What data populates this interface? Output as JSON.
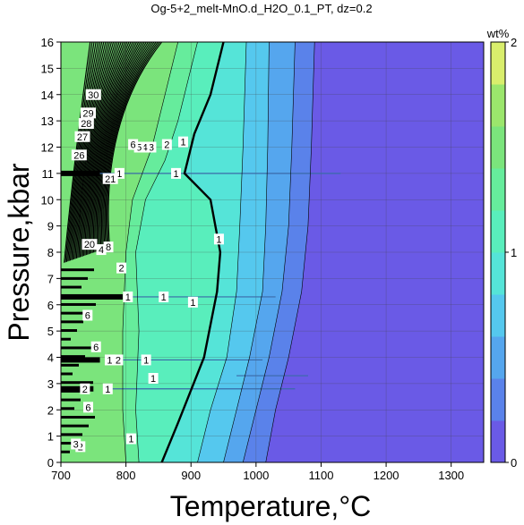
{
  "chart_data": {
    "type": "heatmap",
    "title": "Og-5+2_melt-MnO.d_H2O_0.1_PT, dz=0.2",
    "xlabel": "Temperature,°C",
    "ylabel": "Pressure,kbar",
    "xlim": [
      700,
      1350
    ],
    "ylim": [
      0,
      16
    ],
    "x_ticks": [
      700,
      800,
      900,
      1000,
      1100,
      1200,
      1300
    ],
    "y_ticks": [
      0,
      1,
      2,
      3,
      4,
      5,
      6,
      7,
      8,
      9,
      10,
      11,
      12,
      13,
      14,
      15,
      16
    ],
    "grid": true,
    "colorbar": {
      "label": "wt%",
      "min": 0,
      "max": 2,
      "step": 0.2,
      "ticks": [
        0,
        1,
        2
      ],
      "colors": [
        "#6a5ae6",
        "#5a82ea",
        "#55a6ee",
        "#55c8ee",
        "#55e4d8",
        "#59eebc",
        "#66ec9c",
        "#7be47c",
        "#9be66c",
        "#d9ee6c",
        "#f4b496",
        "#f2a0c0",
        "#f0aad8",
        "#f2b8e2",
        "#f4c6ea",
        "#f6d2ee"
      ]
    },
    "boundaries": [
      {
        "value": 0.2,
        "points": [
          [
            1015,
            0
          ],
          [
            1030,
            2
          ],
          [
            1050,
            4
          ],
          [
            1070,
            6.5
          ],
          [
            1080,
            9
          ],
          [
            1085,
            12
          ],
          [
            1090,
            16
          ]
        ]
      },
      {
        "value": 0.4,
        "points": [
          [
            980,
            0
          ],
          [
            1000,
            2
          ],
          [
            1020,
            4
          ],
          [
            1040,
            6.5
          ],
          [
            1050,
            9
          ],
          [
            1055,
            12
          ],
          [
            1060,
            16
          ]
        ]
      },
      {
        "value": 0.6,
        "points": [
          [
            950,
            0
          ],
          [
            970,
            2
          ],
          [
            990,
            4
          ],
          [
            1010,
            6.5
          ],
          [
            1015,
            9
          ],
          [
            1018,
            12
          ],
          [
            1020,
            16
          ]
        ]
      },
      {
        "value": 0.8,
        "points": [
          [
            910,
            0
          ],
          [
            930,
            2
          ],
          [
            955,
            4
          ],
          [
            970,
            6.5
          ],
          [
            975,
            9
          ],
          [
            980,
            12
          ],
          [
            985,
            16
          ]
        ]
      },
      {
        "value": 1.0,
        "points": [
          [
            855,
            0
          ],
          [
            880,
            1.5
          ],
          [
            920,
            4
          ],
          [
            940,
            6.5
          ],
          [
            945,
            8
          ],
          [
            930,
            10
          ],
          [
            890,
            11
          ],
          [
            905,
            12.5
          ],
          [
            930,
            14
          ],
          [
            950,
            16
          ]
        ]
      },
      {
        "value": 1.2,
        "points": [
          [
            820,
            0
          ],
          [
            815,
            2
          ],
          [
            820,
            5
          ],
          [
            815,
            8
          ],
          [
            830,
            10
          ],
          [
            860,
            11.5
          ],
          [
            880,
            13
          ],
          [
            910,
            16
          ]
        ]
      },
      {
        "value": 1.4,
        "points": [
          [
            800,
            0
          ],
          [
            795,
            2
          ],
          [
            795,
            5
          ],
          [
            800,
            8
          ],
          [
            810,
            10
          ],
          [
            840,
            12
          ],
          [
            860,
            14
          ],
          [
            880,
            16
          ]
        ]
      }
    ],
    "contour_labels": [
      {
        "text": "1",
        "x": 888,
        "y": 12.2
      },
      {
        "text": "1",
        "x": 877,
        "y": 11.0
      },
      {
        "text": "1",
        "x": 790,
        "y": 11.0
      },
      {
        "text": "1",
        "x": 943,
        "y": 8.5
      },
      {
        "text": "1",
        "x": 858,
        "y": 6.3
      },
      {
        "text": "1",
        "x": 803,
        "y": 6.3
      },
      {
        "text": "1",
        "x": 903,
        "y": 6.1
      },
      {
        "text": "1",
        "x": 831,
        "y": 3.9
      },
      {
        "text": "1",
        "x": 775,
        "y": 3.9
      },
      {
        "text": "1",
        "x": 842,
        "y": 3.2
      },
      {
        "text": "1",
        "x": 772,
        "y": 2.8
      },
      {
        "text": "1",
        "x": 808,
        "y": 0.9
      },
      {
        "text": "2",
        "x": 863,
        "y": 12.1
      },
      {
        "text": "2",
        "x": 788,
        "y": 3.9
      },
      {
        "text": "2",
        "x": 737,
        "y": 2.8
      },
      {
        "text": "2",
        "x": 793,
        "y": 7.4
      },
      {
        "text": "2",
        "x": 730,
        "y": 0.6
      },
      {
        "text": "3",
        "x": 839,
        "y": 12.0
      },
      {
        "text": "4",
        "x": 829,
        "y": 12.0
      },
      {
        "text": "5",
        "x": 820,
        "y": 12.0
      },
      {
        "text": "6",
        "x": 811,
        "y": 12.1
      },
      {
        "text": "6",
        "x": 741,
        "y": 5.6
      },
      {
        "text": "6",
        "x": 754,
        "y": 4.4
      },
      {
        "text": "6",
        "x": 742,
        "y": 2.1
      },
      {
        "text": "20",
        "x": 744,
        "y": 8.3
      },
      {
        "text": "21",
        "x": 776,
        "y": 10.8
      },
      {
        "text": "26",
        "x": 728,
        "y": 11.7
      },
      {
        "text": "27",
        "x": 733,
        "y": 12.4
      },
      {
        "text": "28",
        "x": 739,
        "y": 12.9
      },
      {
        "text": "29",
        "x": 742,
        "y": 13.3
      },
      {
        "text": "30",
        "x": 750,
        "y": 14.0
      },
      {
        "text": "4",
        "x": 762,
        "y": 8.1
      },
      {
        "text": "8",
        "x": 773,
        "y": 8.2
      },
      {
        "text": "3",
        "x": 723,
        "y": 0.7
      }
    ]
  }
}
